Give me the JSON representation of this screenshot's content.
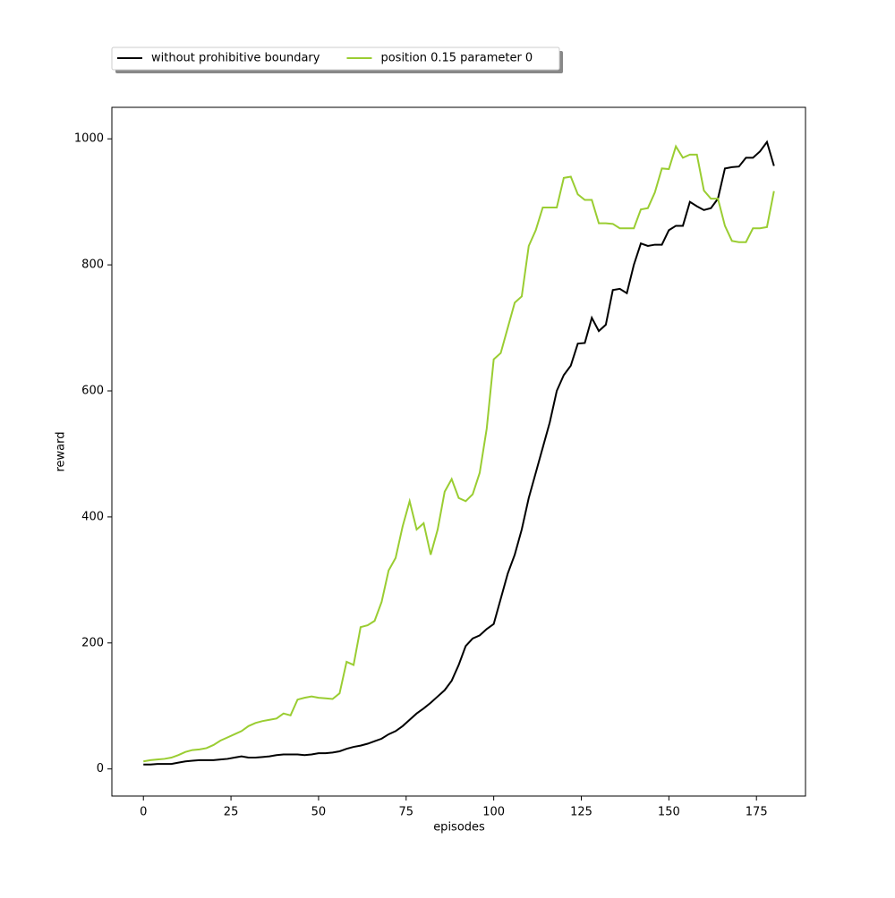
{
  "chart_data": {
    "type": "line",
    "xlabel": "episodes",
    "ylabel": "reward",
    "x": [
      0,
      2,
      4,
      6,
      8,
      10,
      12,
      14,
      16,
      18,
      20,
      22,
      24,
      26,
      28,
      30,
      32,
      34,
      36,
      38,
      40,
      42,
      44,
      46,
      48,
      50,
      52,
      54,
      56,
      58,
      60,
      62,
      64,
      66,
      68,
      70,
      72,
      74,
      76,
      78,
      80,
      82,
      84,
      86,
      88,
      90,
      92,
      94,
      96,
      98,
      100,
      102,
      104,
      106,
      108,
      110,
      112,
      114,
      116,
      118,
      120,
      122,
      124,
      126,
      128,
      130,
      132,
      134,
      136,
      138,
      140,
      142,
      144,
      146,
      148,
      150,
      152,
      154,
      156,
      158,
      160,
      162,
      164,
      166,
      168,
      170,
      172,
      174,
      176,
      178,
      180
    ],
    "series": [
      {
        "name": "without prohibitive boundary",
        "color": "#000000",
        "values": [
          7,
          7,
          8,
          8,
          8,
          10,
          12,
          13,
          14,
          14,
          14,
          15,
          16,
          18,
          20,
          18,
          18,
          19,
          20,
          22,
          23,
          23,
          23,
          22,
          23,
          25,
          25,
          26,
          28,
          32,
          35,
          37,
          40,
          44,
          48,
          55,
          60,
          68,
          78,
          88,
          96,
          105,
          115,
          125,
          140,
          165,
          195,
          207,
          212,
          222,
          230,
          270,
          310,
          340,
          380,
          430,
          470,
          510,
          550,
          600,
          625,
          640,
          675,
          676,
          716,
          695,
          705,
          760,
          762,
          755,
          800,
          834,
          830,
          832,
          832,
          855,
          862,
          862,
          900,
          893,
          887,
          890,
          905,
          953,
          955,
          956,
          970,
          970,
          980,
          995,
          957
        ]
      },
      {
        "name": "position 0.15 parameter 0",
        "color": "#9acd32",
        "values": [
          12,
          14,
          15,
          16,
          18,
          22,
          27,
          30,
          31,
          33,
          38,
          45,
          50,
          55,
          60,
          68,
          73,
          76,
          78,
          80,
          88,
          85,
          110,
          113,
          115,
          113,
          112,
          111,
          120,
          170,
          165,
          225,
          228,
          235,
          265,
          315,
          335,
          385,
          425,
          380,
          390,
          340,
          380,
          440,
          460,
          430,
          425,
          436,
          470,
          540,
          650,
          660,
          700,
          740,
          750,
          830,
          855,
          891,
          891,
          891,
          938,
          940,
          912,
          903,
          903,
          866,
          866,
          865,
          858,
          858,
          858,
          888,
          890,
          915,
          953,
          952,
          988,
          970,
          975,
          975,
          918,
          905,
          905,
          862,
          838,
          836,
          836,
          858,
          858,
          860,
          917
        ]
      }
    ],
    "xlim": [
      -9,
      189
    ],
    "ylim": [
      -43,
      1050
    ],
    "xticks": [
      0,
      25,
      50,
      75,
      100,
      125,
      150,
      175
    ],
    "yticks": [
      0,
      200,
      400,
      600,
      800,
      1000
    ],
    "legend": "upper left outside",
    "grid": false
  }
}
